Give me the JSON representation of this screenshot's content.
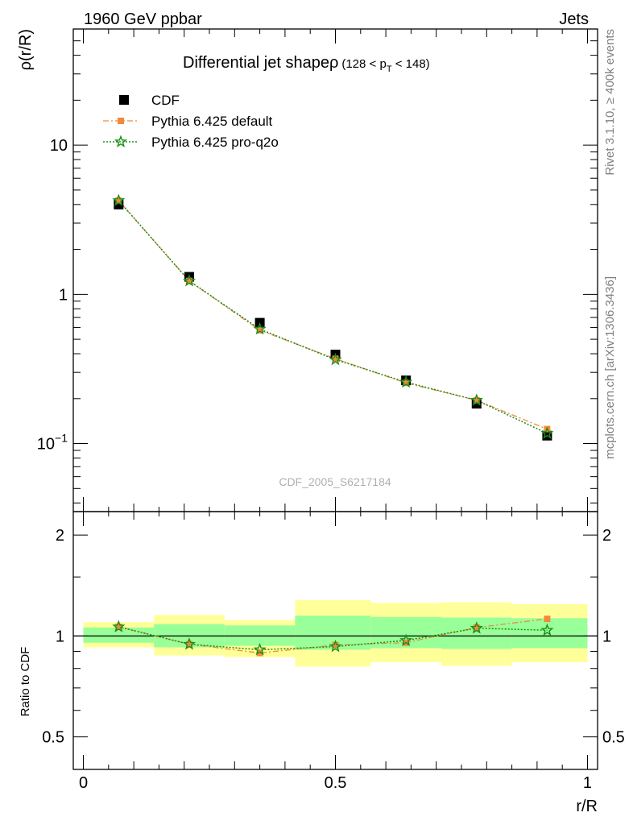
{
  "header": {
    "left": "1960 GeV ppbar",
    "right": "Jets"
  },
  "side_labels": {
    "rivet": "Rivet 3.1.10, ≥ 400k events",
    "mcplots": "mcplots.cern.ch [arXiv:1306.3436]"
  },
  "title": {
    "main": "Differential jet shapeρ",
    "range_pre": "(128 < p",
    "range_sub": "T",
    "range_post": " < 148)"
  },
  "watermark": "CDF_2005_S6217184",
  "top_ylabel": "ρ(r/R)",
  "bottom_ylabel": "Ratio to CDF",
  "xlabel": "r/R",
  "legend": [
    {
      "label": "CDF",
      "color": "#000000",
      "marker": "square"
    },
    {
      "label": "Pythia 6.425 default",
      "color": "#f28a3a",
      "marker": "small-square"
    },
    {
      "label": "Pythia 6.425 pro-q2o",
      "color": "#1a8f1a",
      "marker": "star"
    }
  ],
  "top_yticks": [
    {
      "value": 10,
      "label": "10"
    },
    {
      "value": 1,
      "label": "1"
    },
    {
      "value": 0.1,
      "label": "10",
      "sup": "−1"
    }
  ],
  "bottom_yticks": [
    {
      "value": 2,
      "label": "2"
    },
    {
      "value": 1,
      "label": "1"
    },
    {
      "value": 0.5,
      "label": "0.5"
    }
  ],
  "xticks": [
    {
      "value": 0,
      "label": "0"
    },
    {
      "value": 0.5,
      "label": "0.5"
    },
    {
      "value": 1,
      "label": "1"
    }
  ],
  "chart_data": {
    "type": "scatter",
    "x": [
      0.07,
      0.21,
      0.35,
      0.5,
      0.64,
      0.78,
      0.92
    ],
    "xlim": [
      -0.02,
      1.02
    ],
    "ylim": [
      0.035,
      60
    ],
    "yscale": "log",
    "ratio_ylim": [
      0.4,
      2.35
    ],
    "ratio_yscale": "log",
    "band_edges": [
      0.0,
      0.14,
      0.28,
      0.42,
      0.57,
      0.71,
      0.85,
      1.0
    ],
    "band_inner": [
      [
        0.955,
        1.06
      ],
      [
        0.925,
        1.085
      ],
      [
        0.935,
        1.075
      ],
      [
        0.91,
        1.15
      ],
      [
        0.92,
        1.14
      ],
      [
        0.915,
        1.135
      ],
      [
        0.92,
        1.13
      ]
    ],
    "band_outer": [
      [
        0.925,
        1.1
      ],
      [
        0.875,
        1.155
      ],
      [
        0.865,
        1.115
      ],
      [
        0.81,
        1.28
      ],
      [
        0.835,
        1.255
      ],
      [
        0.815,
        1.26
      ],
      [
        0.835,
        1.245
      ]
    ],
    "series": [
      {
        "name": "CDF",
        "values": [
          4.0,
          1.31,
          0.645,
          0.395,
          0.265,
          0.185,
          0.113
        ]
      },
      {
        "name": "Pythia 6.425 default",
        "values": [
          4.25,
          1.23,
          0.575,
          0.37,
          0.255,
          0.195,
          0.125
        ],
        "ratio": [
          1.065,
          0.945,
          0.89,
          0.94,
          0.955,
          1.06,
          1.125
        ]
      },
      {
        "name": "Pythia 6.425 pro-q2o",
        "values": [
          4.25,
          1.23,
          0.585,
          0.365,
          0.258,
          0.195,
          0.117
        ],
        "ratio": [
          1.065,
          0.945,
          0.91,
          0.93,
          0.97,
          1.055,
          1.04
        ]
      }
    ]
  }
}
